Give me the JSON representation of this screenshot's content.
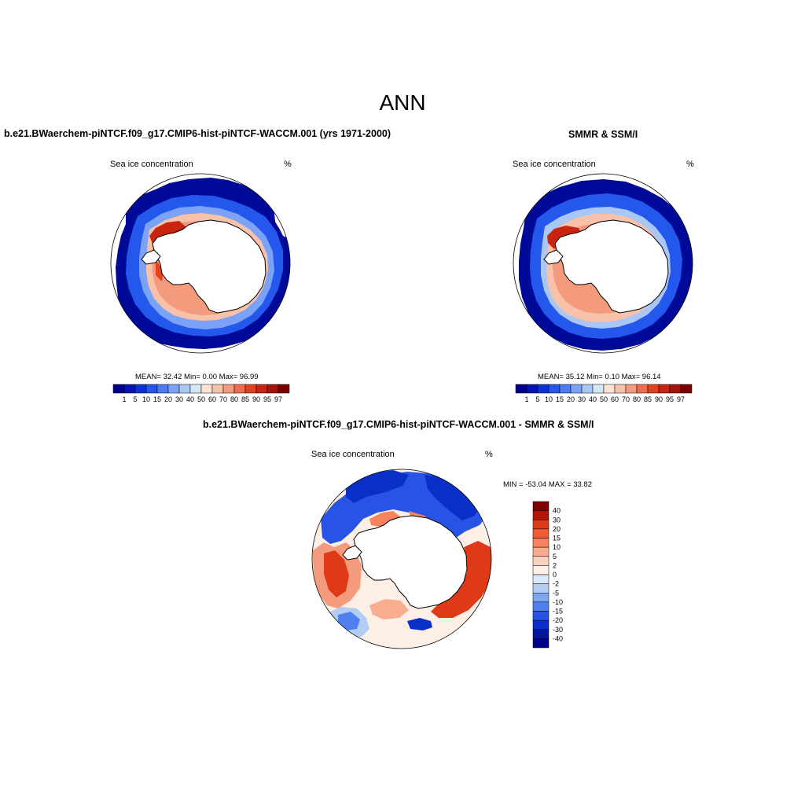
{
  "main_title": "ANN",
  "panels": [
    {
      "title": "b.e21.BWaerchem-piNTCF.f09_g17.CMIP6-hist-piNTCF-WACCM.001 (yrs 1971-2000)",
      "left_label": "Sea ice concentration",
      "right_label": "%",
      "stats": "MEAN=  32.42  Min=   0.00  Max=  96.99"
    },
    {
      "title": "SMMR & SSM/I",
      "left_label": "Sea ice concentration",
      "right_label": "%",
      "stats": "MEAN=  35.12  Min=   0.10  Max=  96.14"
    },
    {
      "title": "b.e21.BWaerchem-piNTCF.f09_g17.CMIP6-hist-piNTCF-WACCM.001 - SMMR & SSM/I",
      "left_label": "Sea ice concentration",
      "right_label": "%",
      "stats": "MIN = -53.04 MAX =  33.82"
    }
  ],
  "concentration_colorbar": {
    "labels": [
      "1",
      "5",
      "10",
      "15",
      "20",
      "30",
      "40",
      "50",
      "60",
      "70",
      "80",
      "85",
      "90",
      "95",
      "97"
    ],
    "colors": [
      "#00008b",
      "#0015b4",
      "#0a35d6",
      "#2457ec",
      "#4b7cf5",
      "#7aa3f7",
      "#a9c6f4",
      "#d6e6f5",
      "#fbe3d6",
      "#f8c1a9",
      "#f49b7d",
      "#ee6d4c",
      "#e3421f",
      "#c92410",
      "#a61408",
      "#7e0000"
    ]
  },
  "difference_colorbar": {
    "labels": [
      "40",
      "30",
      "20",
      "15",
      "10",
      "5",
      "2",
      "0",
      "-2",
      "-5",
      "-10",
      "-15",
      "-20",
      "-30",
      "-40"
    ],
    "colors": [
      "#7e0000",
      "#b3150a",
      "#de3a18",
      "#f05c33",
      "#f5845e",
      "#f8ad8f",
      "#fbd2bf",
      "#fdeee6",
      "#d9e9f8",
      "#b1cdf4",
      "#7fa6f1",
      "#4f7ff0",
      "#2754e4",
      "#0a2fc7",
      "#00169e",
      "#00008b"
    ]
  }
}
